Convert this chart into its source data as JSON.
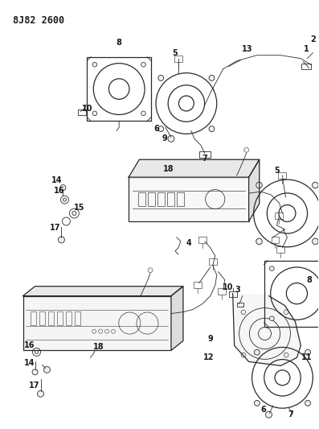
{
  "title": "8J82 2600",
  "bg_color": "#ffffff",
  "line_color": "#2a2a2a",
  "label_color": "#1a1a1a",
  "title_fontsize": 8.5,
  "label_fontsize": 7,
  "figsize": [
    3.97,
    5.33
  ],
  "dpi": 100
}
